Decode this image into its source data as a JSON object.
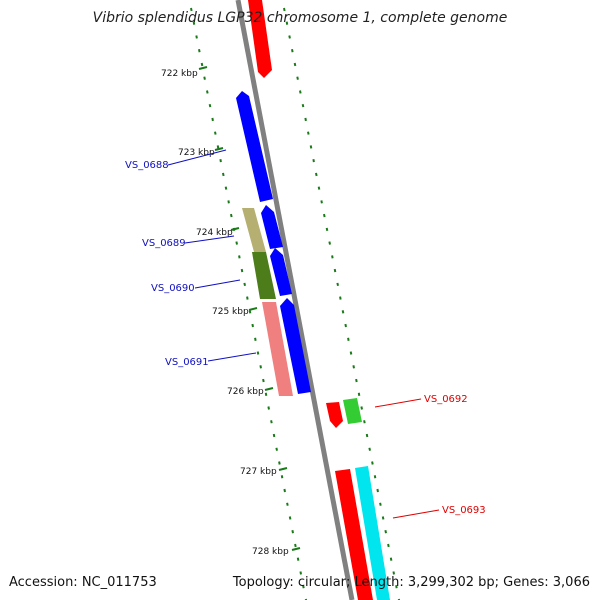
{
  "title": "Vibrio splendidus LGP32 chromosome 1, complete genome",
  "footer": {
    "accession": "Accession: NC_011753",
    "summary": "Topology: circular; Length: 3,299,302 bp; Genes: 3,066"
  },
  "ruler": [
    "722 kbp",
    "723 kbp",
    "724 kbp",
    "725 kbp",
    "726 kbp",
    "727 kbp",
    "728 kbp"
  ],
  "gene_labels": {
    "left": [
      "VS_0688",
      "VS_0689",
      "VS_0690",
      "VS_0691"
    ],
    "right": [
      "VS_0692",
      "VS_0693"
    ]
  },
  "colors": {
    "backbone": "#808080",
    "tick": "#1a7a1a",
    "forward_cds": "#0000ff",
    "reverse_cds": "#ff0000",
    "left_label": "#1010c0",
    "right_label": "#e00000",
    "cyan_feature": "#00e5ee",
    "green_feature": "#33cc33",
    "olive_feature": "#4d7d1a",
    "khaki_feature": "#b5b071",
    "pink_feature": "#f08080"
  }
}
